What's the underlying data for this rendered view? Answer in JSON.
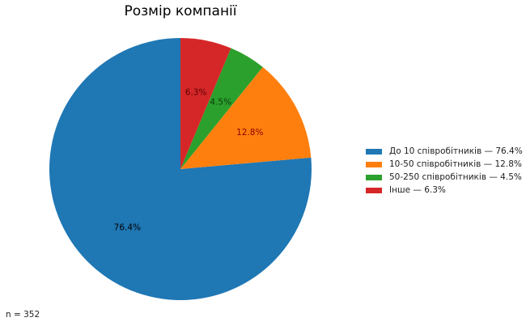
{
  "chart_data": {
    "type": "pie",
    "title": "Розмір компанії",
    "start_angle_deg": 90,
    "direction": "counterclockwise",
    "slices": [
      {
        "label": "До 10 співробітників",
        "value": 76.4,
        "pct_label": "76.4%",
        "legend": "До 10 співробітників — 76.4%",
        "color": "#1f77b4",
        "text_color": "#000000"
      },
      {
        "label": "10-50 співробітників",
        "value": 12.8,
        "pct_label": "12.8%",
        "legend": "10-50 співробітників — 12.8%",
        "color": "#ff7f0e",
        "text_color": "#8b0000"
      },
      {
        "label": "50-250 співробітників",
        "value": 4.5,
        "pct_label": "4.5%",
        "legend": "50-250 співробітників — 4.5%",
        "color": "#2ca02c",
        "text_color": "#0b3d0b"
      },
      {
        "label": "Інше",
        "value": 6.3,
        "pct_label": "6.3%",
        "legend": "Інше — 6.3%",
        "color": "#d62728",
        "text_color": "#5a0000"
      }
    ],
    "legend_placement": "right",
    "annotation": "n = 352"
  }
}
